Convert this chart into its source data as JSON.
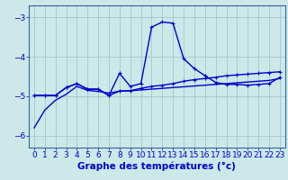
{
  "xlabel": "Graphe des températures (°c)",
  "background_color": "#cce8e8",
  "grid_color": "#aacccc",
  "line_color": "#0000cc",
  "x": [
    0,
    1,
    2,
    3,
    4,
    5,
    6,
    7,
    8,
    9,
    10,
    11,
    12,
    13,
    14,
    15,
    16,
    17,
    18,
    19,
    20,
    21,
    22,
    23
  ],
  "line1": [
    -5.8,
    -5.35,
    -5.1,
    -4.95,
    -4.75,
    -4.85,
    -4.88,
    -4.92,
    -4.87,
    -4.86,
    -4.84,
    -4.82,
    -4.8,
    -4.78,
    -4.76,
    -4.74,
    -4.72,
    -4.7,
    -4.68,
    -4.66,
    -4.64,
    -4.62,
    -4.6,
    -4.55
  ],
  "line2": [
    -4.98,
    -4.98,
    -4.98,
    -4.78,
    -4.68,
    -4.82,
    -4.82,
    -4.98,
    -4.42,
    -4.75,
    -4.68,
    -3.25,
    -3.12,
    -3.15,
    -4.05,
    -4.3,
    -4.48,
    -4.65,
    -4.7,
    -4.7,
    -4.72,
    -4.7,
    -4.68,
    -4.52
  ],
  "line3": [
    -4.98,
    -4.98,
    -4.98,
    -4.78,
    -4.68,
    -4.82,
    -4.82,
    -4.98,
    -4.87,
    -4.86,
    -4.8,
    -4.75,
    -4.72,
    -4.68,
    -4.62,
    -4.58,
    -4.55,
    -4.52,
    -4.48,
    -4.46,
    -4.44,
    -4.42,
    -4.4,
    -4.38
  ],
  "ylim": [
    -6.3,
    -2.7
  ],
  "yticks": [
    -6,
    -5,
    -4,
    -3
  ],
  "xlim": [
    -0.5,
    23.5
  ],
  "xlabel_fontsize": 7.5,
  "tick_fontsize": 6.5,
  "spine_color": "#336699"
}
